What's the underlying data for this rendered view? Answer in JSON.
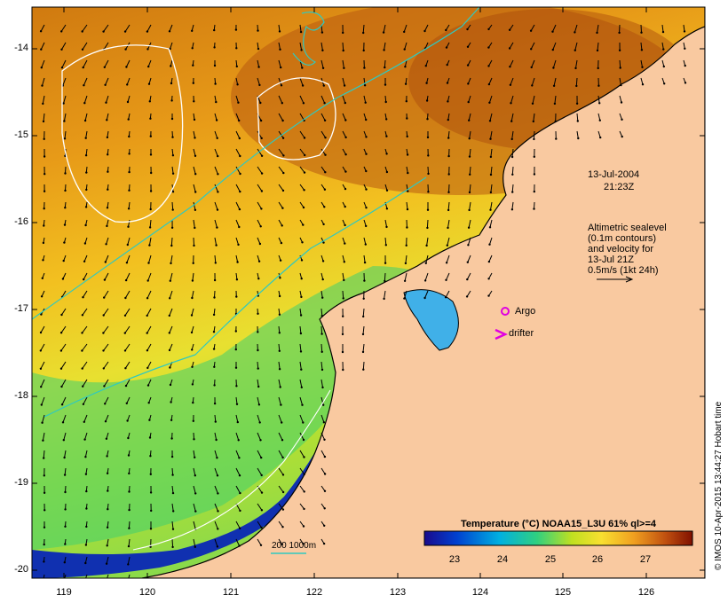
{
  "map": {
    "lat_ticks": [
      "-14",
      "-15",
      "-16",
      "-17",
      "-18",
      "-19",
      "-20"
    ],
    "lon_ticks": [
      "119",
      "120",
      "121",
      "122",
      "123",
      "124",
      "125",
      "126"
    ],
    "date_label": "13-Jul-2004",
    "time_label": "21:23Z",
    "altimetry_note": [
      "Altimetric sealevel",
      "(0.1m contours)",
      "and velocity for",
      "13-Jul 21Z",
      "0.5m/s (1kt 24h)"
    ],
    "argo_label": "Argo",
    "drifter_label": "drifter",
    "bathy_label": "200  1000m",
    "credit": "© IMOS 10-Apr-2015 13:44:27 Hobart time",
    "colors": {
      "land": "#f9c9a0",
      "contour_sealevel": "#ffffff",
      "contour_bathy": "#2fc9c0",
      "argo": "#e000e0",
      "drifter": "#e000e0"
    }
  },
  "colorbar": {
    "title": "Temperature (°C) NOAA15_L3U 61% ql>=4",
    "ticks": [
      "23",
      "24",
      "25",
      "26",
      "27"
    ],
    "range": [
      22.3,
      27.9
    ],
    "colors": [
      "#1a0a8c",
      "#0040d0",
      "#00b0e0",
      "#30d080",
      "#c0e020",
      "#f8e030",
      "#f0a020",
      "#c05010",
      "#801000"
    ]
  }
}
